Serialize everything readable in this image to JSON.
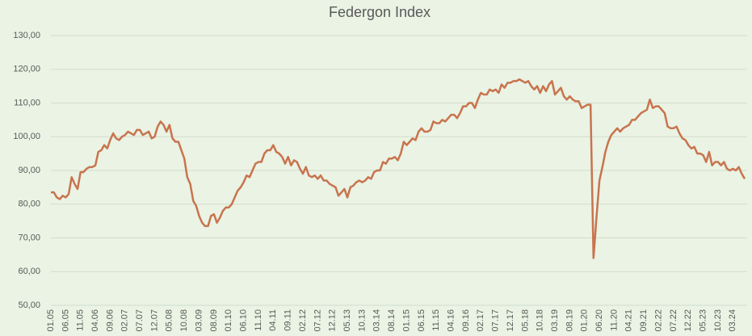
{
  "chart_data": {
    "type": "line",
    "title": "Federgon Index",
    "categories": [
      "01.05",
      null,
      null,
      null,
      null,
      "06.05",
      null,
      null,
      null,
      null,
      "11.05",
      null,
      null,
      null,
      null,
      "04.06",
      null,
      null,
      null,
      null,
      "09.06",
      null,
      null,
      null,
      null,
      "02.07",
      null,
      null,
      null,
      null,
      "07.07",
      null,
      null,
      null,
      null,
      "12.07",
      null,
      null,
      null,
      null,
      "05.08",
      null,
      null,
      null,
      null,
      "10.08",
      null,
      null,
      null,
      null,
      "03.09",
      null,
      null,
      null,
      null,
      "08.09",
      null,
      null,
      null,
      null,
      "01.10",
      null,
      null,
      null,
      null,
      "06.10",
      null,
      null,
      null,
      null,
      "11.10",
      null,
      null,
      null,
      null,
      "04.11",
      null,
      null,
      null,
      null,
      "09.11",
      null,
      null,
      null,
      null,
      "02.12",
      null,
      null,
      null,
      null,
      "07.12",
      null,
      null,
      null,
      null,
      "12.12",
      null,
      null,
      null,
      null,
      "05.13",
      null,
      null,
      null,
      null,
      "10.13",
      null,
      null,
      null,
      null,
      "03.14",
      null,
      null,
      null,
      null,
      "08.14",
      null,
      null,
      null,
      null,
      "01.15",
      null,
      null,
      null,
      null,
      "06.15",
      null,
      null,
      null,
      null,
      "11.15",
      null,
      null,
      null,
      null,
      "04.16",
      null,
      null,
      null,
      null,
      "09.16",
      null,
      null,
      null,
      null,
      "02.17",
      null,
      null,
      null,
      null,
      "07.17",
      null,
      null,
      null,
      null,
      "12.17",
      null,
      null,
      null,
      null,
      "05.18",
      null,
      null,
      null,
      null,
      "10.18",
      null,
      null,
      null,
      null,
      "03.19",
      null,
      null,
      null,
      null,
      "08.19",
      null,
      null,
      null,
      null,
      "01.20",
      null,
      null,
      null,
      null,
      "06.20",
      null,
      null,
      null,
      null,
      "11.20",
      null,
      null,
      null,
      null,
      "04.21",
      null,
      null,
      null,
      null,
      "09.21",
      null,
      null,
      null,
      null,
      "02.22",
      null,
      null,
      null,
      null,
      "07.22",
      null,
      null,
      null,
      null,
      "12.22",
      null,
      null,
      null,
      null,
      "05.23",
      null,
      null,
      null,
      null,
      "10.23",
      null,
      null,
      null,
      null,
      "03.24",
      null,
      null,
      null,
      null
    ],
    "series": [
      {
        "name": "Federgon Index",
        "color": "#c8744e",
        "values": [
          83.5,
          83.5,
          82,
          81.5,
          82.5,
          82,
          83,
          88,
          86,
          84.5,
          89.5,
          89.5,
          90.5,
          91,
          91,
          91.5,
          95.5,
          96,
          97.5,
          96.5,
          99,
          101,
          99.5,
          99,
          100,
          100.5,
          101.5,
          101,
          100.5,
          102,
          102,
          100.5,
          101,
          101.5,
          99.5,
          100,
          103,
          104.5,
          103.5,
          101.5,
          103.5,
          99.5,
          98.5,
          98.5,
          96,
          93.5,
          88,
          86,
          81,
          79.5,
          76.5,
          74.5,
          73.5,
          73.5,
          76.5,
          77,
          74.5,
          76,
          78,
          79,
          79,
          80,
          82,
          84,
          85,
          86.5,
          88.5,
          88,
          90,
          92,
          92.5,
          92.5,
          95,
          96,
          96,
          97.5,
          95.5,
          95,
          94,
          92,
          94,
          91.5,
          93,
          92.5,
          90.5,
          89,
          91,
          88.5,
          88,
          88.5,
          87.5,
          88.5,
          87,
          87,
          86,
          85.5,
          85,
          82.5,
          83.5,
          84.5,
          82,
          85,
          85.5,
          86.5,
          87,
          86.5,
          87,
          88,
          87.5,
          89.5,
          90,
          90,
          92.5,
          92,
          93.5,
          93.5,
          94,
          93,
          95,
          98.5,
          97.5,
          98.5,
          99.5,
          99,
          101.5,
          102.5,
          101.5,
          101.5,
          102,
          104.5,
          104,
          104,
          105,
          104.5,
          105.5,
          106.5,
          106.5,
          105.5,
          107,
          109,
          109,
          110,
          110,
          108.5,
          111,
          113,
          112.5,
          112.5,
          114,
          113.5,
          114,
          113,
          115.5,
          114.5,
          116,
          116,
          116.5,
          116.5,
          117,
          116.5,
          116,
          116.5,
          115,
          114,
          115,
          113,
          115,
          113.5,
          115.5,
          116.5,
          112.5,
          113.5,
          114.5,
          112,
          111,
          112,
          111,
          110.5,
          110.5,
          108.5,
          109,
          109.5,
          109.5,
          64,
          76,
          87,
          91,
          95.5,
          98.5,
          100.5,
          101.5,
          102.5,
          101.5,
          102.5,
          103,
          103.5,
          105,
          105,
          106,
          107,
          107.5,
          108,
          111,
          108.5,
          109,
          109,
          108,
          107,
          103,
          102.5,
          102.5,
          103,
          101,
          99.5,
          99,
          97.5,
          96.5,
          97,
          95,
          95,
          94.5,
          92.5,
          95.5,
          91.5,
          92.5,
          92.5,
          91.5,
          92.5,
          90.5,
          90,
          90.5,
          90,
          91,
          89,
          87.5
        ]
      }
    ],
    "ylim": [
      50,
      130
    ],
    "yticks": [
      {
        "value": 50,
        "label": "50,00"
      },
      {
        "value": 60,
        "label": "60,00"
      },
      {
        "value": 70,
        "label": "70,00"
      },
      {
        "value": 80,
        "label": "80,00"
      },
      {
        "value": 90,
        "label": "90,00"
      },
      {
        "value": 100,
        "label": "100,00"
      },
      {
        "value": 110,
        "label": "110,00"
      },
      {
        "value": 120,
        "label": "120,00"
      },
      {
        "value": 130,
        "label": "130,00"
      }
    ],
    "grid": true
  }
}
